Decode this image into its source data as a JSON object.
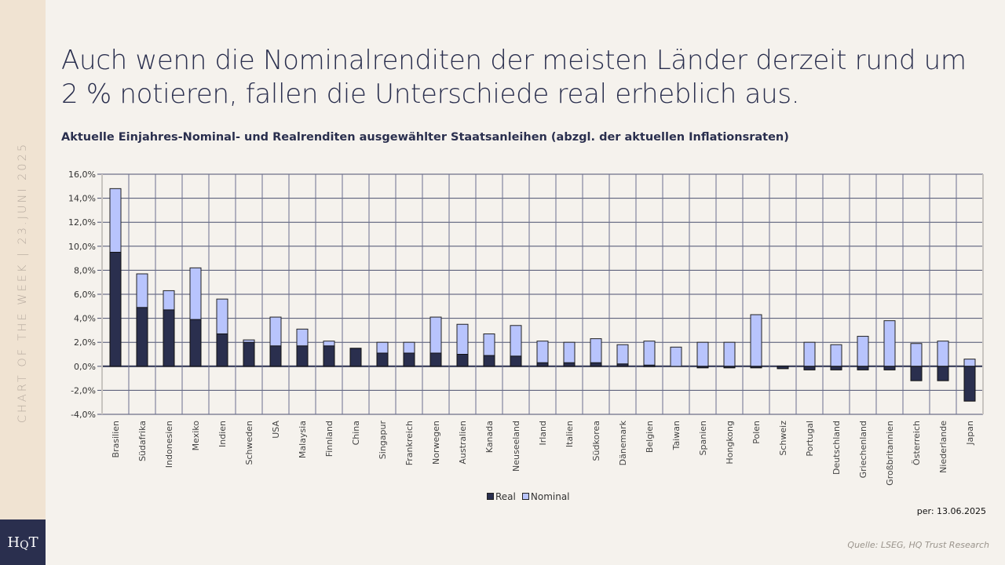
{
  "sidebar": {
    "text": "CHART OF THE WEEK | 23.JUNI 2025",
    "logo": "HQT"
  },
  "headline": "Auch wenn die Nominalrenditen der meisten Länder derzeit rund um 2 % notieren, fallen die Unterschiede real erheblich aus.",
  "subtitle": "Aktuelle Einjahres-Nominal- und Realrenditen ausgewählter Staatsanleihen (abzgl. der aktuellen Inflationsraten)",
  "date_note": "per: 13.06.2025",
  "source": "Quelle: LSEG, HQ Trust Research",
  "colors": {
    "real": "#2a2f4e",
    "nominal": "#b8c4fd",
    "grid": "#4a4f6e"
  },
  "chart_data": {
    "type": "bar",
    "title": "Aktuelle Einjahres-Nominal- und Realrenditen ausgewählter Staatsanleihen (abzgl. der aktuellen Inflationsraten)",
    "categories": [
      "Brasilien",
      "Südafrika",
      "Indonesien",
      "Mexiko",
      "Indien",
      "Schweden",
      "USA",
      "Malaysia",
      "Finnland",
      "China",
      "Singapur",
      "Frankreich",
      "Norwegen",
      "Australien",
      "Kanada",
      "Neuseeland",
      "Irland",
      "Italien",
      "Südkorea",
      "Dänemark",
      "Belgien",
      "Taiwan",
      "Spanien",
      "Hongkong",
      "Polen",
      "Schweiz",
      "Portugal",
      "Deutschland",
      "Griechenland",
      "Großbritannien",
      "Österreich",
      "Niederlande",
      "Japan"
    ],
    "series": [
      {
        "name": "Real",
        "values": [
          9.5,
          4.9,
          4.7,
          3.9,
          2.7,
          2.0,
          1.7,
          1.7,
          1.7,
          1.5,
          1.1,
          1.1,
          1.1,
          1.0,
          0.9,
          0.85,
          0.3,
          0.3,
          0.3,
          0.2,
          0.1,
          0.0,
          -0.1,
          -0.1,
          -0.1,
          -0.2,
          -0.3,
          -0.3,
          -0.3,
          -0.3,
          -1.2,
          -1.2,
          -2.9
        ]
      },
      {
        "name": "Nominal",
        "values": [
          14.8,
          7.7,
          6.3,
          8.2,
          5.6,
          2.2,
          4.1,
          3.1,
          2.1,
          1.5,
          2.0,
          2.0,
          4.1,
          3.5,
          2.7,
          3.4,
          2.1,
          2.0,
          2.3,
          1.8,
          2.1,
          1.6,
          2.0,
          2.0,
          4.3,
          0.0,
          2.0,
          1.8,
          2.5,
          3.8,
          1.9,
          2.1,
          0.6
        ]
      }
    ],
    "yticks": [
      "16,0%",
      "14,0%",
      "12,0%",
      "10,0%",
      "8,0%",
      "6,0%",
      "4,0%",
      "2,0%",
      "0,0%",
      "-2,0%",
      "-4,0%"
    ],
    "ylim": [
      -4,
      16
    ],
    "grid": true,
    "legend_position": "bottom"
  }
}
